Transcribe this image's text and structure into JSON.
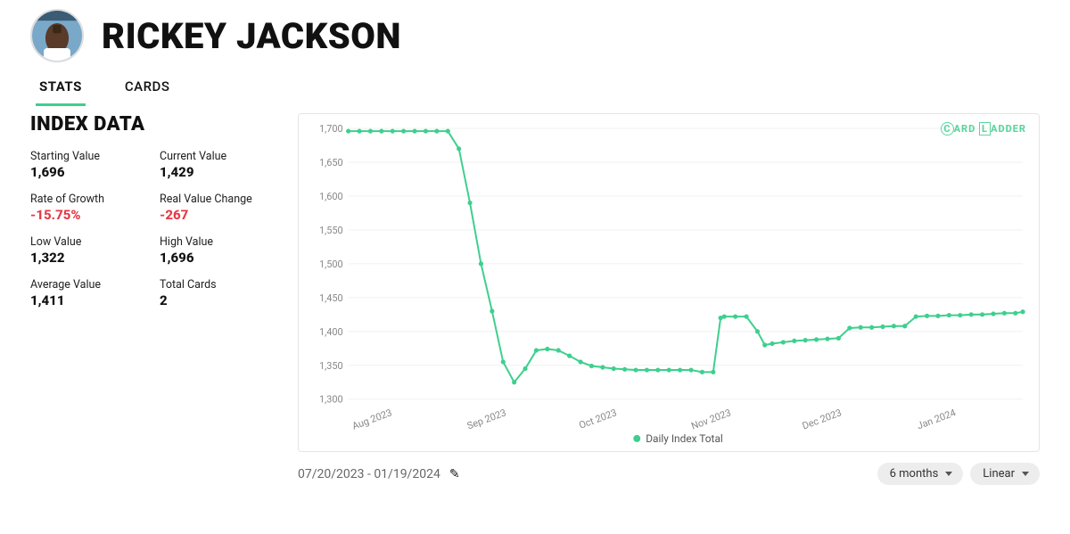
{
  "player_name": "RICKEY JACKSON",
  "tabs": {
    "stats": "STATS",
    "cards": "CARDS",
    "active": "stats"
  },
  "index_title": "INDEX DATA",
  "stats": {
    "starting_value": {
      "label": "Starting Value",
      "value": "1,696"
    },
    "current_value": {
      "label": "Current Value",
      "value": "1,429"
    },
    "rate_of_growth": {
      "label": "Rate of Growth",
      "value": "-15.75%",
      "negative": true
    },
    "real_value_change": {
      "label": "Real Value Change",
      "value": "-267",
      "negative": true
    },
    "low_value": {
      "label": "Low Value",
      "value": "1,322"
    },
    "high_value": {
      "label": "High Value",
      "value": "1,696"
    },
    "average_value": {
      "label": "Average Value",
      "value": "1,411"
    },
    "total_cards": {
      "label": "Total Cards",
      "value": "2"
    }
  },
  "chart": {
    "type": "line",
    "series_name": "Daily Index Total",
    "line_color": "#3ecf8e",
    "marker_color": "#3ecf8e",
    "marker_radius": 2.6,
    "line_width": 2,
    "grid_color": "#f0f0f0",
    "axis_text_color": "#888888",
    "background_color": "#ffffff",
    "ylim": [
      1300,
      1700
    ],
    "ytick_step": 50,
    "yticks": [
      1300,
      1350,
      1400,
      1450,
      1500,
      1550,
      1600,
      1650,
      1700
    ],
    "xlim": [
      0,
      183
    ],
    "xticks": [
      {
        "pos": 12,
        "label": "Aug 2023"
      },
      {
        "pos": 43,
        "label": "Sep 2023"
      },
      {
        "pos": 73,
        "label": "Oct 2023"
      },
      {
        "pos": 104,
        "label": "Nov 2023"
      },
      {
        "pos": 134,
        "label": "Dec 2023"
      },
      {
        "pos": 165,
        "label": "Jan 2024"
      }
    ],
    "data": [
      [
        0,
        1696
      ],
      [
        3,
        1696
      ],
      [
        6,
        1696
      ],
      [
        9,
        1696
      ],
      [
        12,
        1696
      ],
      [
        15,
        1696
      ],
      [
        18,
        1696
      ],
      [
        21,
        1696
      ],
      [
        24,
        1696
      ],
      [
        27,
        1696
      ],
      [
        30,
        1670
      ],
      [
        33,
        1590
      ],
      [
        36,
        1500
      ],
      [
        39,
        1430
      ],
      [
        42,
        1355
      ],
      [
        45,
        1325
      ],
      [
        48,
        1345
      ],
      [
        51,
        1372
      ],
      [
        54,
        1374
      ],
      [
        57,
        1372
      ],
      [
        60,
        1364
      ],
      [
        63,
        1355
      ],
      [
        66,
        1349
      ],
      [
        69,
        1347
      ],
      [
        72,
        1345
      ],
      [
        75,
        1344
      ],
      [
        78,
        1343
      ],
      [
        81,
        1343
      ],
      [
        84,
        1343
      ],
      [
        87,
        1343
      ],
      [
        90,
        1343
      ],
      [
        93,
        1343
      ],
      [
        96,
        1340
      ],
      [
        99,
        1340
      ],
      [
        101,
        1420
      ],
      [
        102,
        1422
      ],
      [
        105,
        1422
      ],
      [
        108,
        1422
      ],
      [
        111,
        1400
      ],
      [
        113,
        1380
      ],
      [
        115,
        1382
      ],
      [
        118,
        1384
      ],
      [
        121,
        1386
      ],
      [
        124,
        1387
      ],
      [
        127,
        1388
      ],
      [
        130,
        1389
      ],
      [
        133,
        1390
      ],
      [
        136,
        1405
      ],
      [
        139,
        1406
      ],
      [
        142,
        1406
      ],
      [
        145,
        1407
      ],
      [
        148,
        1408
      ],
      [
        151,
        1408
      ],
      [
        154,
        1422
      ],
      [
        157,
        1423
      ],
      [
        160,
        1423
      ],
      [
        163,
        1424
      ],
      [
        166,
        1424
      ],
      [
        169,
        1425
      ],
      [
        172,
        1425
      ],
      [
        175,
        1426
      ],
      [
        178,
        1427
      ],
      [
        181,
        1427
      ],
      [
        183,
        1429
      ]
    ],
    "watermark": "CARD LADDER"
  },
  "footer": {
    "date_range": "07/20/2023 - 01/19/2024",
    "range_selector": "6 months",
    "scale_selector": "Linear"
  }
}
